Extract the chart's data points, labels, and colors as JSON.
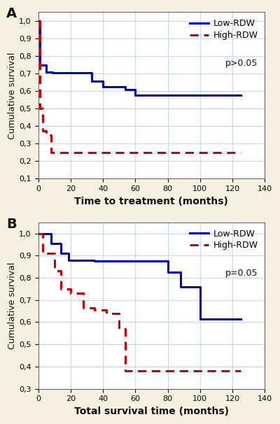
{
  "background_color": "#f5f0e0",
  "plot_bg": "#ffffff",
  "panel_A": {
    "title": "A",
    "xlabel": "Time to treatment (months)",
    "ylabel": "Cumulative survival",
    "xlim": [
      0,
      140
    ],
    "ylim": [
      0.1,
      1.05
    ],
    "yticks": [
      0.1,
      0.2,
      0.3,
      0.4,
      0.5,
      0.6,
      0.7,
      0.8,
      0.9,
      1.0
    ],
    "yticklabels": [
      "0,1",
      "0,2",
      "0,3",
      "0,4",
      "0,5",
      "0,6",
      "0,7",
      "0,8",
      "0,9",
      "1,0"
    ],
    "xticks": [
      0,
      20,
      40,
      60,
      80,
      100,
      120,
      140
    ],
    "low_rdw_x": [
      0,
      1,
      1,
      5,
      5,
      9,
      9,
      33,
      33,
      40,
      40,
      54,
      54,
      60,
      60,
      115,
      115,
      125
    ],
    "low_rdw_y": [
      1.0,
      1.0,
      0.75,
      0.75,
      0.71,
      0.71,
      0.705,
      0.705,
      0.655,
      0.655,
      0.625,
      0.625,
      0.61,
      0.61,
      0.578,
      0.578,
      0.578,
      0.578
    ],
    "high_rdw_x": [
      0,
      1,
      1,
      3,
      3,
      5,
      5,
      8,
      8,
      10,
      10,
      115,
      115,
      125
    ],
    "high_rdw_y": [
      1.0,
      1.0,
      0.5,
      0.5,
      0.375,
      0.375,
      0.35,
      0.35,
      0.25,
      0.25,
      0.25,
      0.25,
      0.25,
      0.25
    ],
    "legend_lines": [
      "Low-RDW",
      "High-RDW"
    ],
    "legend_pval": "p>0.05",
    "low_color": "#0000cc",
    "high_color": "#cc0000"
  },
  "panel_B": {
    "title": "B",
    "xlabel": "Total survival time (months)",
    "ylabel": "Cumulative survival",
    "xlim": [
      0,
      140
    ],
    "ylim": [
      0.3,
      1.05
    ],
    "yticks": [
      0.3,
      0.4,
      0.5,
      0.6,
      0.7,
      0.8,
      0.9,
      1.0
    ],
    "yticklabels": [
      "0,3",
      "0,4",
      "0,5",
      "0,6",
      "0,7",
      "0,8",
      "0,9",
      "1,0"
    ],
    "xticks": [
      0,
      20,
      40,
      60,
      80,
      100,
      120,
      140
    ],
    "low_rdw_x": [
      0,
      8,
      8,
      14,
      14,
      19,
      19,
      35,
      35,
      80,
      80,
      88,
      88,
      100,
      100,
      115,
      115,
      125
    ],
    "low_rdw_y": [
      1.0,
      1.0,
      0.955,
      0.955,
      0.91,
      0.91,
      0.88,
      0.88,
      0.875,
      0.875,
      0.825,
      0.825,
      0.76,
      0.76,
      0.615,
      0.615,
      0.615,
      0.615
    ],
    "high_rdw_x": [
      0,
      3,
      3,
      10,
      10,
      14,
      14,
      20,
      20,
      28,
      28,
      35,
      35,
      42,
      42,
      50,
      50,
      54,
      54,
      60,
      60,
      115,
      115,
      125
    ],
    "high_rdw_y": [
      1.0,
      1.0,
      0.91,
      0.91,
      0.83,
      0.83,
      0.75,
      0.75,
      0.73,
      0.73,
      0.665,
      0.665,
      0.655,
      0.655,
      0.64,
      0.64,
      0.57,
      0.57,
      0.38,
      0.38,
      0.38,
      0.38,
      0.38,
      0.38
    ],
    "legend_lines": [
      "Low-RDW",
      "High-RDW"
    ],
    "legend_pval": "p=0.05",
    "low_color": "#0000cc",
    "high_color": "#cc0000"
  }
}
